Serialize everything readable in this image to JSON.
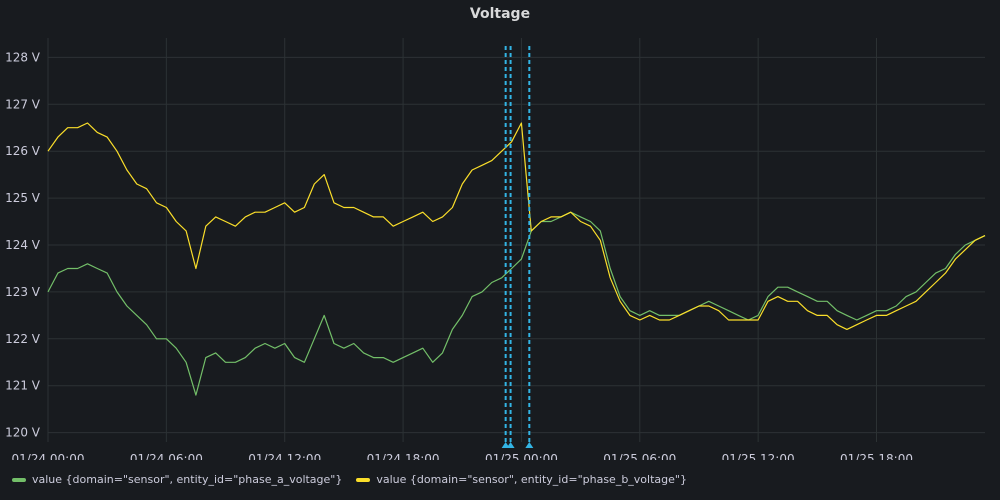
{
  "panel": {
    "title": "Voltage"
  },
  "colors": {
    "phase_a": "#73bf69",
    "phase_b": "#fade2a",
    "annotation": "#33b5e5",
    "grid": "#2c3235"
  },
  "chart_data": {
    "type": "line",
    "title": "Voltage",
    "xlabel": "",
    "ylabel": "",
    "grid": true,
    "legend_position": "bottom-left",
    "y_unit": "V",
    "ylim": [
      119.8,
      128.2
    ],
    "y_ticks": [
      120,
      121,
      122,
      123,
      124,
      125,
      126,
      127,
      128
    ],
    "y_tick_labels": [
      "120 V",
      "121 V",
      "122 V",
      "123 V",
      "124 V",
      "125 V",
      "126 V",
      "127 V",
      "128 V"
    ],
    "xlim": [
      "01/24 00:00",
      "01/25 23:00"
    ],
    "x_ticks": [
      "01/24 00:00",
      "01/24 06:00",
      "01/24 12:00",
      "01/24 18:00",
      "01/25 00:00",
      "01/25 06:00",
      "01/25 12:00",
      "01/25 18:00"
    ],
    "x_tick_hours": [
      0,
      6,
      12,
      18,
      24,
      30,
      36,
      42
    ],
    "annotations": [
      {
        "hour": 23.2,
        "label": ""
      },
      {
        "hour": 23.45,
        "label": ""
      },
      {
        "hour": 24.4,
        "label": ""
      }
    ],
    "series": [
      {
        "name": "value {domain=\"sensor\", entity_id=\"phase_a_voltage\"}",
        "color": "#73bf69",
        "x": [
          0,
          0.5,
          1,
          1.5,
          2,
          2.5,
          3,
          3.5,
          4,
          4.5,
          5,
          5.5,
          6,
          6.5,
          7,
          7.5,
          8,
          8.5,
          9,
          9.5,
          10,
          10.5,
          11,
          11.5,
          12,
          12.5,
          13,
          13.5,
          14,
          14.5,
          15,
          15.5,
          16,
          16.5,
          17,
          17.5,
          18,
          18.5,
          19,
          19.5,
          20,
          20.5,
          21,
          21.5,
          22,
          22.5,
          23,
          23.5,
          24,
          24.5,
          25,
          25.5,
          26,
          26.5,
          27,
          27.5,
          28,
          28.5,
          29,
          29.5,
          30,
          30.5,
          31,
          31.5,
          32,
          32.5,
          33,
          33.5,
          34,
          34.5,
          35,
          35.5,
          36,
          36.5,
          37,
          37.5,
          38,
          38.5,
          39,
          39.5,
          40,
          40.5,
          41,
          41.5,
          42,
          42.5,
          43,
          43.5,
          44,
          44.5,
          45,
          45.5,
          46,
          46.5,
          47,
          47.5
        ],
        "y": [
          123.0,
          123.4,
          123.5,
          123.5,
          123.6,
          123.5,
          123.4,
          123.0,
          122.7,
          122.5,
          122.3,
          122.0,
          122.0,
          121.8,
          121.5,
          120.8,
          121.6,
          121.7,
          121.5,
          121.5,
          121.6,
          121.8,
          121.9,
          121.8,
          121.9,
          121.6,
          121.5,
          122.0,
          122.5,
          121.9,
          121.8,
          121.9,
          121.7,
          121.6,
          121.6,
          121.5,
          121.6,
          121.7,
          121.8,
          121.5,
          121.7,
          122.2,
          122.5,
          122.9,
          123.0,
          123.2,
          123.3,
          123.5,
          123.7,
          124.3,
          124.5,
          124.5,
          124.6,
          124.7,
          124.6,
          124.5,
          124.3,
          123.5,
          122.9,
          122.6,
          122.5,
          122.6,
          122.5,
          122.5,
          122.5,
          122.6,
          122.7,
          122.8,
          122.7,
          122.6,
          122.5,
          122.4,
          122.5,
          122.9,
          123.1,
          123.1,
          123.0,
          122.9,
          122.8,
          122.8,
          122.6,
          122.5,
          122.4,
          122.5,
          122.6,
          122.6,
          122.7,
          122.9,
          123.0,
          123.2,
          123.4,
          123.5,
          123.8,
          124.0,
          124.1,
          124.2
        ]
      },
      {
        "name": "value {domain=\"sensor\", entity_id=\"phase_b_voltage\"}",
        "color": "#fade2a",
        "x": [
          0,
          0.5,
          1,
          1.5,
          2,
          2.5,
          3,
          3.5,
          4,
          4.5,
          5,
          5.5,
          6,
          6.5,
          7,
          7.5,
          8,
          8.5,
          9,
          9.5,
          10,
          10.5,
          11,
          11.5,
          12,
          12.5,
          13,
          13.5,
          14,
          14.5,
          15,
          15.5,
          16,
          16.5,
          17,
          17.5,
          18,
          18.5,
          19,
          19.5,
          20,
          20.5,
          21,
          21.5,
          22,
          22.5,
          23,
          23.5,
          24,
          24.5,
          25,
          25.5,
          26,
          26.5,
          27,
          27.5,
          28,
          28.5,
          29,
          29.5,
          30,
          30.5,
          31,
          31.5,
          32,
          32.5,
          33,
          33.5,
          34,
          34.5,
          35,
          35.5,
          36,
          36.5,
          37,
          37.5,
          38,
          38.5,
          39,
          39.5,
          40,
          40.5,
          41,
          41.5,
          42,
          42.5,
          43,
          43.5,
          44,
          44.5,
          45,
          45.5,
          46,
          46.5,
          47,
          47.5
        ],
        "y": [
          126.0,
          126.3,
          126.5,
          126.5,
          126.6,
          126.4,
          126.3,
          126.0,
          125.6,
          125.3,
          125.2,
          124.9,
          124.8,
          124.5,
          124.3,
          123.5,
          124.4,
          124.6,
          124.5,
          124.4,
          124.6,
          124.7,
          124.7,
          124.8,
          124.9,
          124.7,
          124.8,
          125.3,
          125.5,
          124.9,
          124.8,
          124.8,
          124.7,
          124.6,
          124.6,
          124.4,
          124.5,
          124.6,
          124.7,
          124.5,
          124.6,
          124.8,
          125.3,
          125.6,
          125.7,
          125.8,
          126.0,
          126.2,
          126.6,
          124.3,
          124.5,
          124.6,
          124.6,
          124.7,
          124.5,
          124.4,
          124.1,
          123.3,
          122.8,
          122.5,
          122.4,
          122.5,
          122.4,
          122.4,
          122.5,
          122.6,
          122.7,
          122.7,
          122.6,
          122.4,
          122.4,
          122.4,
          122.4,
          122.8,
          122.9,
          122.8,
          122.8,
          122.6,
          122.5,
          122.5,
          122.3,
          122.2,
          122.3,
          122.4,
          122.5,
          122.5,
          122.6,
          122.7,
          122.8,
          123.0,
          123.2,
          123.4,
          123.7,
          123.9,
          124.1,
          124.2
        ]
      }
    ]
  }
}
